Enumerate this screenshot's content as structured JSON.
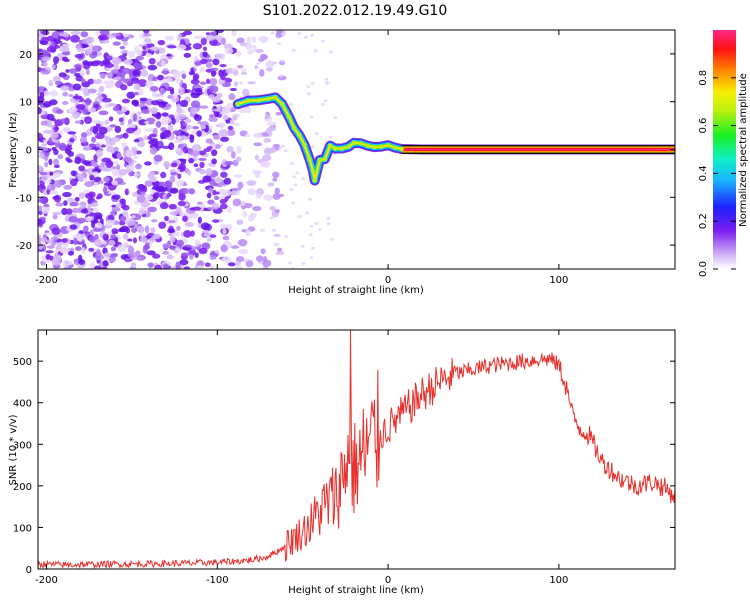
{
  "title": "S101.2022.012.19.49.G10",
  "chart_data": [
    {
      "type": "heatmap",
      "xlabel": "Height of straight line (km)",
      "ylabel": "Frequency (Hz)",
      "xlim": [
        -205,
        168
      ],
      "ylim": [
        -25,
        25
      ],
      "xticks": [
        -200,
        -100,
        0,
        100
      ],
      "yticks": [
        -20,
        -10,
        0,
        10,
        20
      ],
      "colorbar": {
        "label": "Normalized spectral amplitude",
        "range": [
          0,
          1
        ],
        "ticks": [
          "0.0",
          "0.2",
          "0.4",
          "0.6",
          "0.8"
        ]
      },
      "noise_region_km": [
        -205,
        -62
      ],
      "trace": [
        {
          "x": -88,
          "y": 9.5
        },
        {
          "x": -82,
          "y": 10.2
        },
        {
          "x": -76,
          "y": 10.3
        },
        {
          "x": -70,
          "y": 10.6
        },
        {
          "x": -66,
          "y": 10.9
        },
        {
          "x": -62,
          "y": 9.5
        },
        {
          "x": -58,
          "y": 6.8
        },
        {
          "x": -55,
          "y": 4.5
        },
        {
          "x": -52,
          "y": 3.0
        },
        {
          "x": -49,
          "y": 1.0
        },
        {
          "x": -46,
          "y": -2.0
        },
        {
          "x": -44,
          "y": -4.5
        },
        {
          "x": -43,
          "y": -6.5
        },
        {
          "x": -40,
          "y": -2.2
        },
        {
          "x": -37,
          "y": -2.0
        },
        {
          "x": -34,
          "y": 0.8
        },
        {
          "x": -31,
          "y": 0.2
        },
        {
          "x": -27,
          "y": 0.2
        },
        {
          "x": -23,
          "y": 0.6
        },
        {
          "x": -20,
          "y": 1.4
        },
        {
          "x": -16,
          "y": 1.3
        },
        {
          "x": -12,
          "y": 0.8
        },
        {
          "x": -8,
          "y": 0.5
        },
        {
          "x": -4,
          "y": 0.6
        },
        {
          "x": 0,
          "y": 0.9
        },
        {
          "x": 4,
          "y": 0.4
        },
        {
          "x": 8,
          "y": 0.1
        },
        {
          "x": 20,
          "y": 0.0
        },
        {
          "x": 60,
          "y": 0.0
        },
        {
          "x": 100,
          "y": 0.0
        },
        {
          "x": 140,
          "y": 0.0
        },
        {
          "x": 168,
          "y": 0.0
        }
      ]
    },
    {
      "type": "line",
      "xlabel": "Height of straight line (km)",
      "ylabel": "SNR (10 * v/v)",
      "xlim": [
        -205,
        168
      ],
      "ylim": [
        0,
        575
      ],
      "xticks": [
        -200,
        -100,
        0,
        100
      ],
      "yticks": [
        0,
        100,
        200,
        300,
        400,
        500
      ],
      "color": "#e8302c",
      "series": [
        {
          "x": [
            -205,
            -190,
            -175,
            -160,
            -145,
            -130,
            -115,
            -100,
            -90,
            -80,
            -72,
            -66,
            -60,
            -55,
            -50,
            -45,
            -40,
            -35,
            -30,
            -26,
            -24,
            -22,
            -18,
            -12,
            -6,
            0,
            10,
            20,
            30,
            40,
            50,
            60,
            70,
            80,
            90,
            95,
            100,
            105,
            108,
            112,
            118,
            125,
            135,
            145,
            155,
            162,
            168
          ],
          "y": [
            12,
            10,
            11,
            12,
            12,
            13,
            14,
            16,
            18,
            22,
            28,
            40,
            55,
            75,
            90,
            110,
            140,
            160,
            180,
            230,
            280,
            230,
            250,
            290,
            320,
            340,
            380,
            420,
            450,
            470,
            480,
            490,
            495,
            500,
            505,
            505,
            490,
            430,
            370,
            340,
            320,
            260,
            220,
            200,
            210,
            195,
            175
          ]
        }
      ],
      "spike": {
        "x": -22,
        "y": 575
      }
    }
  ]
}
